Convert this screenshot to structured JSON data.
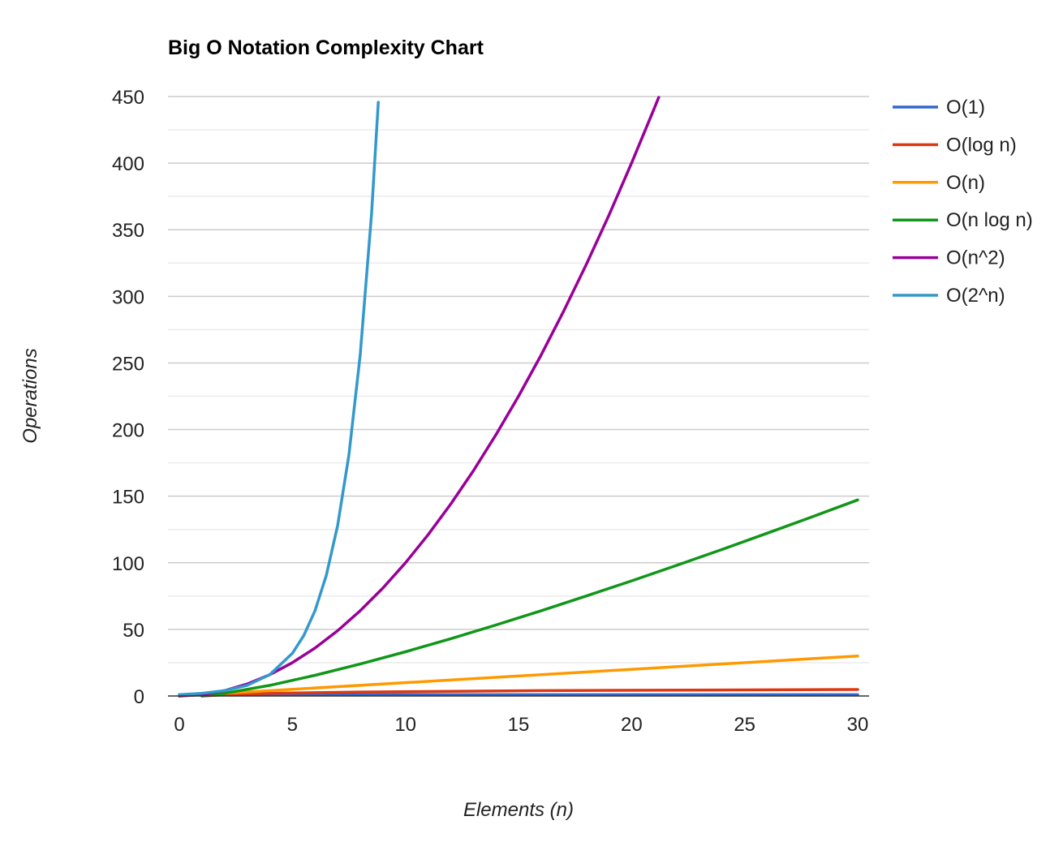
{
  "chart_data": {
    "type": "line",
    "title": "Big O Notation Complexity Chart",
    "xlabel": "Elements (n)",
    "ylabel": "Operations",
    "xlim": [
      0,
      30
    ],
    "ylim": [
      0,
      450
    ],
    "x_ticks": [
      "0",
      "5",
      "10",
      "15",
      "20",
      "25",
      "30"
    ],
    "y_ticks": [
      "0",
      "50",
      "100",
      "150",
      "200",
      "250",
      "300",
      "350",
      "400",
      "450"
    ],
    "grid": true,
    "legend_position": "right",
    "series": [
      {
        "name": "O(1)",
        "color": "#3366cc",
        "x": [
          0,
          30
        ],
        "values": [
          1,
          1
        ]
      },
      {
        "name": "O(log n)",
        "color": "#dc3912",
        "x": [
          1,
          2,
          4,
          8,
          16,
          30
        ],
        "values": [
          0,
          1,
          2,
          3,
          4,
          4.9
        ]
      },
      {
        "name": "O(n)",
        "color": "#ff9900",
        "x": [
          0,
          30
        ],
        "values": [
          0,
          30
        ]
      },
      {
        "name": "O(n log n)",
        "color": "#109618",
        "x": [
          1,
          2,
          4,
          6,
          8,
          10,
          12,
          14,
          16,
          18,
          20,
          22,
          24,
          26,
          28,
          30
        ],
        "values": [
          0,
          2,
          8,
          15.5,
          24,
          33.2,
          43,
          53.3,
          64,
          75.1,
          86.4,
          98.1,
          110,
          122.2,
          134.6,
          147.2
        ]
      },
      {
        "name": "O(n^2)",
        "color": "#990099",
        "x": [
          0,
          1,
          2,
          3,
          4,
          5,
          6,
          7,
          8,
          9,
          10,
          11,
          12,
          13,
          14,
          15,
          16,
          17,
          18,
          19,
          20,
          21,
          21.2
        ],
        "values": [
          0,
          1,
          4,
          9,
          16,
          25,
          36,
          49,
          64,
          81,
          100,
          121,
          144,
          169,
          196,
          225,
          256,
          289,
          324,
          361,
          400,
          441,
          449.4
        ]
      },
      {
        "name": "O(2^n)",
        "color": "#3399cc",
        "x": [
          0,
          1,
          2,
          3,
          4,
          5,
          5.5,
          6,
          6.5,
          7,
          7.5,
          8,
          8.5,
          8.8
        ],
        "values": [
          1,
          2,
          4,
          8,
          16,
          32,
          45.3,
          64,
          90.5,
          128,
          181,
          256,
          362,
          445.7
        ]
      }
    ]
  }
}
